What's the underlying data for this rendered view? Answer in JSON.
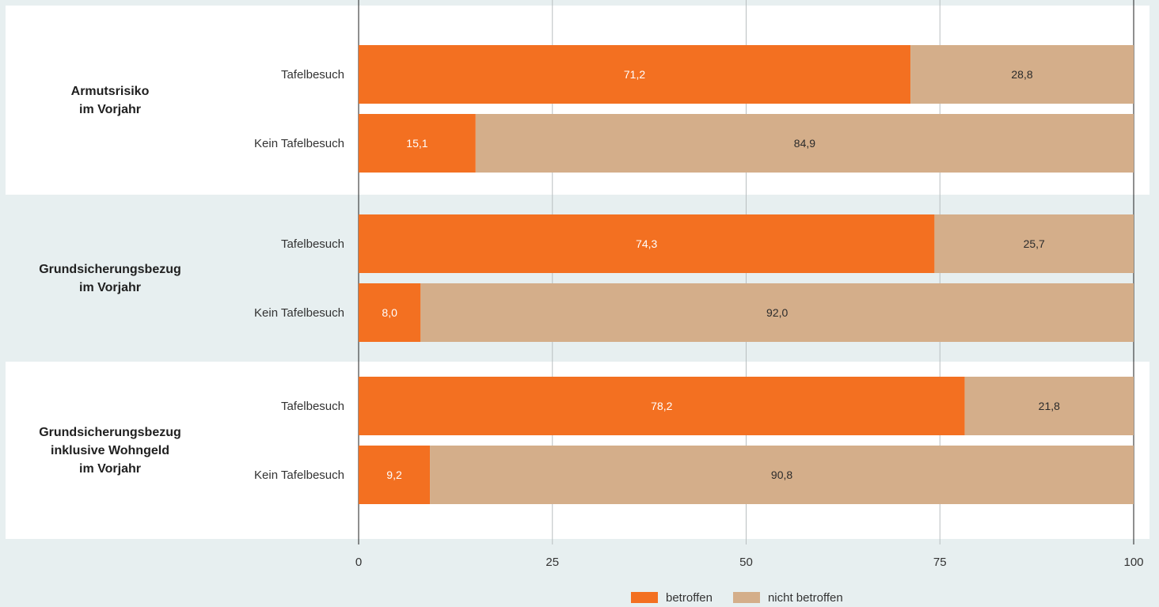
{
  "chart_data": {
    "type": "bar",
    "orientation": "horizontal",
    "stacked": true,
    "xlim": [
      0,
      100
    ],
    "xticks": [
      "0",
      "25",
      "50",
      "75",
      "100"
    ],
    "grid": true,
    "legend_position": "bottom",
    "series": [
      {
        "name": "betroffen",
        "color": "#f37021"
      },
      {
        "name": "nicht betroffen",
        "color": "#d4ae8a"
      }
    ],
    "groups": [
      {
        "label": [
          "Armutsrisiko",
          "im Vorjahr"
        ],
        "rows": [
          {
            "label": "Tafelbesuch",
            "values": [
              71.2,
              28.8
            ],
            "labels": [
              "71,2",
              "28,8"
            ]
          },
          {
            "label": "Kein Tafelbesuch",
            "values": [
              15.1,
              84.9
            ],
            "labels": [
              "15,1",
              "84,9"
            ]
          }
        ]
      },
      {
        "label": [
          "Grundsicherungsbezug",
          "im Vorjahr"
        ],
        "rows": [
          {
            "label": "Tafelbesuch",
            "values": [
              74.3,
              25.7
            ],
            "labels": [
              "74,3",
              "25,7"
            ]
          },
          {
            "label": "Kein Tafelbesuch",
            "values": [
              8.0,
              92.0
            ],
            "labels": [
              "8,0",
              "92,0"
            ]
          }
        ]
      },
      {
        "label": [
          "Grundsicherungsbezug",
          "inklusive Wohngeld",
          "im Vorjahr"
        ],
        "rows": [
          {
            "label": "Tafelbesuch",
            "values": [
              78.2,
              21.8
            ],
            "labels": [
              "78,2",
              "21,8"
            ]
          },
          {
            "label": "Kein Tafelbesuch",
            "values": [
              9.2,
              90.8
            ],
            "labels": [
              "9,2",
              "90,8"
            ]
          }
        ]
      }
    ]
  },
  "colors": {
    "background": "#e7eff0",
    "panel": "#ffffff",
    "gridline": "#b9bfc1",
    "axis": "#1f1f1f",
    "value_text_on_orange": "#ffffff",
    "value_text_on_tan": "#2b2b2b"
  },
  "legend": {
    "items": [
      {
        "label": "betroffen",
        "color": "#f37021"
      },
      {
        "label": "nicht betroffen",
        "color": "#d4ae8a"
      }
    ]
  }
}
